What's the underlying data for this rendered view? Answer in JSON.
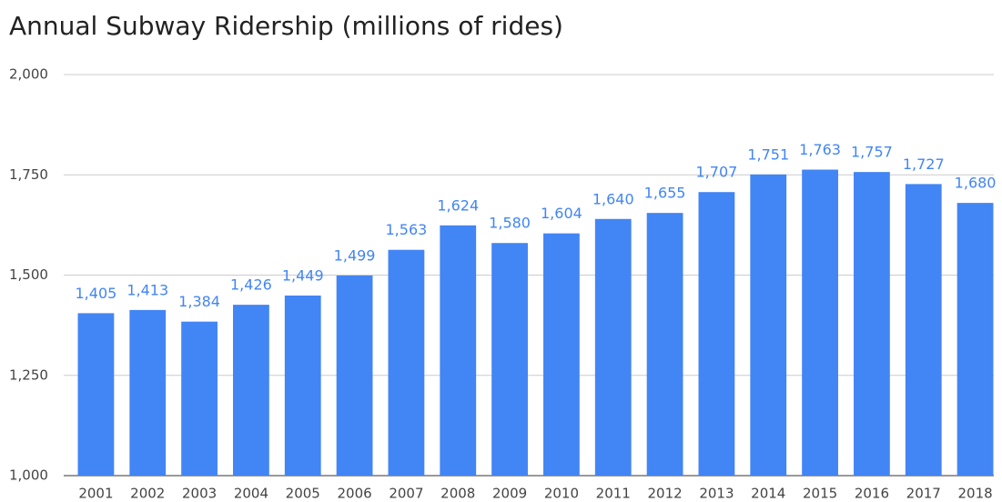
{
  "chart_data": {
    "type": "bar",
    "title": "Annual Subway Ridership (millions of rides)",
    "categories": [
      "2001",
      "2002",
      "2003",
      "2004",
      "2005",
      "2006",
      "2007",
      "2008",
      "2009",
      "2010",
      "2011",
      "2012",
      "2013",
      "2014",
      "2015",
      "2016",
      "2017",
      "2018"
    ],
    "values": [
      1405,
      1413,
      1384,
      1426,
      1449,
      1499,
      1563,
      1624,
      1580,
      1604,
      1640,
      1655,
      1707,
      1751,
      1763,
      1757,
      1727,
      1680
    ],
    "value_labels": [
      "1,405",
      "1,413",
      "1,384",
      "1,426",
      "1,449",
      "1,499",
      "1,563",
      "1,624",
      "1,580",
      "1,604",
      "1,640",
      "1,655",
      "1,707",
      "1,751",
      "1,763",
      "1,757",
      "1,727",
      "1,680"
    ],
    "color": "#4285f4",
    "ylim": [
      1000,
      2000
    ],
    "yticks": [
      {
        "value": 1000,
        "label": "1,000"
      },
      {
        "value": 1250,
        "label": "1,250"
      },
      {
        "value": 1500,
        "label": "1,500"
      },
      {
        "value": 1750,
        "label": "1,750"
      },
      {
        "value": 2000,
        "label": "2,000"
      }
    ],
    "grid": true
  }
}
